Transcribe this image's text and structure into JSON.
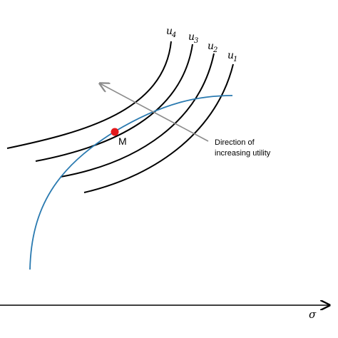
{
  "indifference_curves": [
    {
      "name": "u",
      "sub": "4"
    },
    {
      "name": "u",
      "sub": "3"
    },
    {
      "name": "u",
      "sub": "2"
    },
    {
      "name": "u",
      "sub": "1"
    }
  ],
  "tangency_point": {
    "label": "M",
    "color": "#e31a1c"
  },
  "direction_label": {
    "line1": "Direction of",
    "line2": "increasing utility"
  },
  "x_axis_label": "σ",
  "colors": {
    "frontier": "#2a7ab0",
    "curves": "#000000",
    "arrow": "#8c8c8c"
  }
}
